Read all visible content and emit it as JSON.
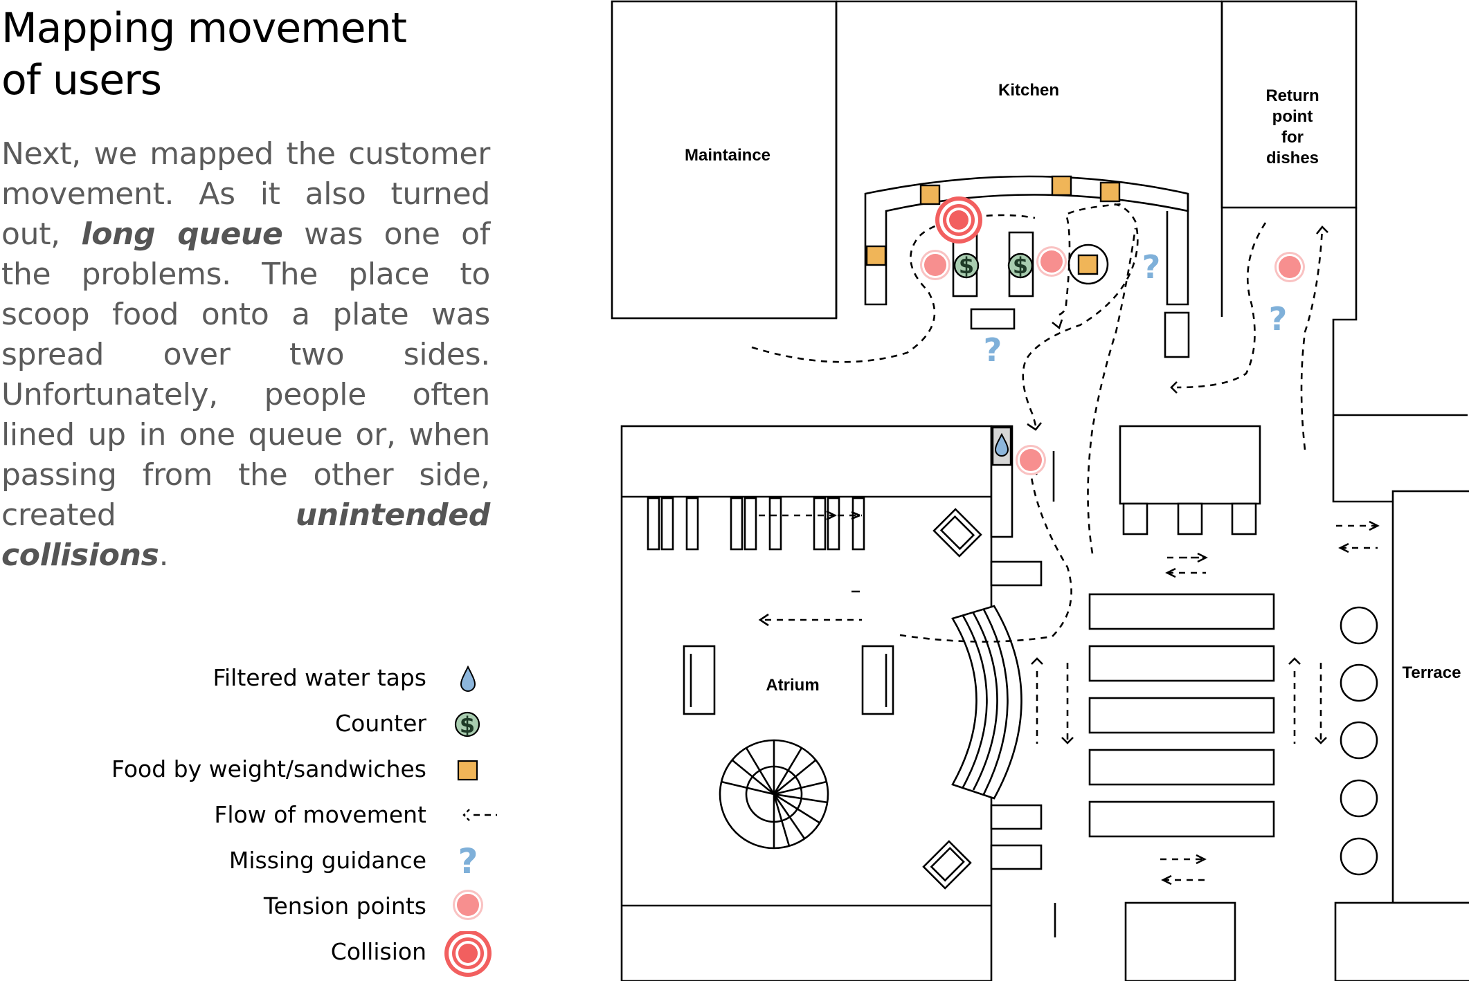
{
  "title_line1": "Mapping movement",
  "title_line2": "of users",
  "intro": {
    "p1": "Next, we mapped the customer movement. As it also turned out, ",
    "em1": "long queue",
    "p2": " was one of the problems. The place to scoop food onto a plate was spread over two sides. Unfortunately, people often lined up in one queue or, when passing from the other side, created ",
    "em2": "unintended collisions",
    "p3": "."
  },
  "legend": {
    "water": "Filtered water taps",
    "counter": "Counter",
    "food": "Food by weight/sandwiches",
    "flow": "Flow of movement",
    "guidance": "Missing guidance",
    "tension": "Tension points",
    "collision": "Collision"
  },
  "rooms": {
    "maintenance": "Maintaince",
    "kitchen": "Kitchen",
    "return_l1": "Return",
    "return_l2": "point",
    "return_l3": "for",
    "return_l4": "dishes",
    "atrium": "Atrium",
    "terrace": "Terrace"
  },
  "symbols": {
    "counter_glyph": "$",
    "guidance_glyph": "?"
  },
  "colors": {
    "water": "#8db6dc",
    "counter_fill": "#a9cdb0",
    "counter_stroke": "#2d5a3a",
    "food": "#f0b558",
    "tension_fill": "#f78f8f",
    "tension_ring": "#f9c2c2",
    "collision": "#f25f5f",
    "guidance": "#7fb0d9"
  }
}
